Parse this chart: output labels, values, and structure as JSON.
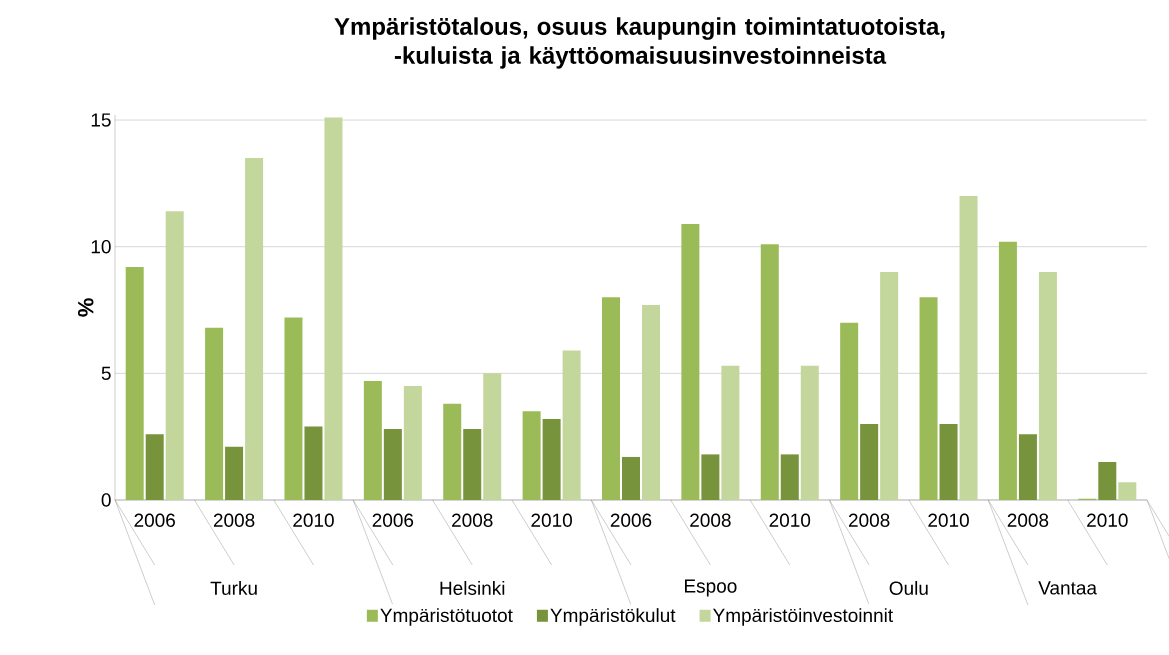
{
  "chart_data": {
    "type": "bar",
    "title": "Ympäristötalous, osuus kaupungin toimintatuotoista, -kuluista ja käyttöomaisuusinvestoinneista",
    "ylabel": "%",
    "categories": [
      "2006",
      "2008",
      "2010",
      "2006",
      "2008",
      "2010",
      "2006",
      "2008",
      "2010",
      "2008",
      "2010",
      "2008",
      "2010"
    ],
    "annotations": [
      "Turku",
      "Helsinki",
      "Espoo",
      "Oulu",
      "Vantaa"
    ],
    "series": [
      {
        "name": "Ympäristötuotot",
        "color": "#9bbb59",
        "values": [
          9.2,
          6.8,
          7.2,
          4.7,
          3.8,
          3.5,
          8.0,
          10.9,
          10.1,
          7.0,
          8.0,
          10.2,
          0.05
        ]
      },
      {
        "name": "Ympäristökulut",
        "color": "#77933c",
        "values": [
          2.6,
          2.1,
          2.9,
          2.8,
          2.8,
          3.2,
          1.7,
          1.8,
          1.8,
          3.0,
          3.0,
          2.6,
          1.5
        ]
      },
      {
        "name": "Ympäristöinvestoinnit",
        "color": "#c3d69b",
        "values": [
          11.4,
          13.5,
          15.1,
          4.5,
          5.0,
          5.9,
          7.7,
          5.3,
          5.3,
          9.0,
          12.0,
          9.0,
          0.7
        ]
      }
    ],
    "ylim": [
      0,
      15.2
    ],
    "yticks": [
      0,
      5,
      10,
      15
    ],
    "grid": "y",
    "legend": "bottom"
  }
}
